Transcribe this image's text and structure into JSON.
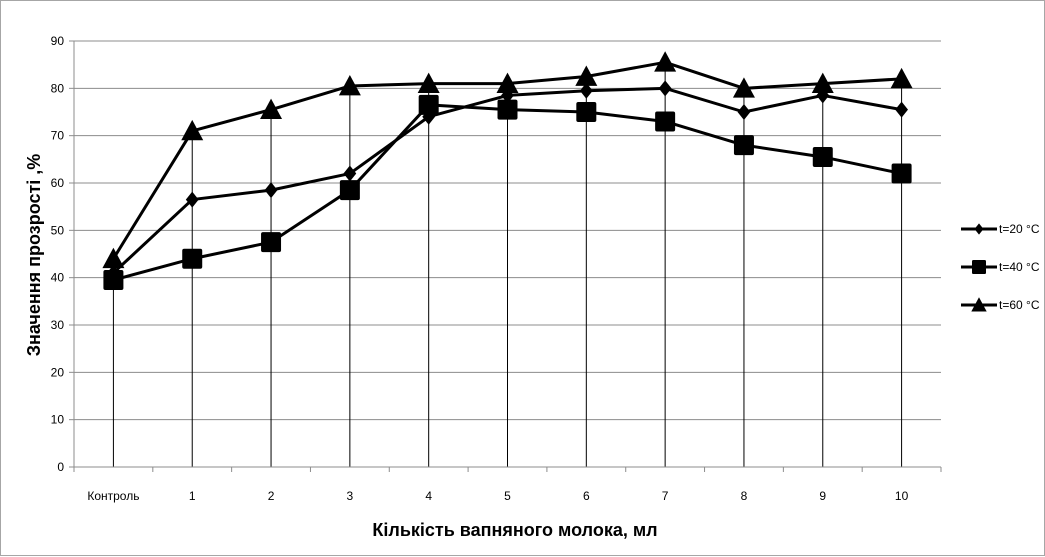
{
  "chart_data": {
    "type": "line",
    "title": "",
    "xlabel": "Кількість  вапняного молока, мл",
    "ylabel": "Значення прозрості ,%",
    "categories": [
      "Контроль",
      "1",
      "2",
      "3",
      "4",
      "5",
      "6",
      "7",
      "8",
      "9",
      "10"
    ],
    "ylim": [
      0,
      90
    ],
    "yticks": [
      0,
      10,
      20,
      30,
      40,
      50,
      60,
      70,
      80,
      90
    ],
    "grid": true,
    "drop_lines": true,
    "legend_position": "right",
    "series": [
      {
        "name": "t=20 °C",
        "marker": "diamond",
        "color": "#000000",
        "values": [
          41,
          56.5,
          58.5,
          62,
          74,
          78.5,
          79.5,
          80,
          75,
          78.5,
          75.5
        ]
      },
      {
        "name": "t=40 °C",
        "marker": "square",
        "color": "#000000",
        "values": [
          39.5,
          44,
          47.5,
          58.5,
          76.5,
          75.5,
          75,
          73,
          68,
          65.5,
          62
        ]
      },
      {
        "name": "t=60 °C",
        "marker": "triangle",
        "color": "#000000",
        "values": [
          44,
          71,
          75.5,
          80.5,
          81,
          81,
          82.5,
          85.5,
          80,
          81,
          82
        ]
      }
    ]
  }
}
